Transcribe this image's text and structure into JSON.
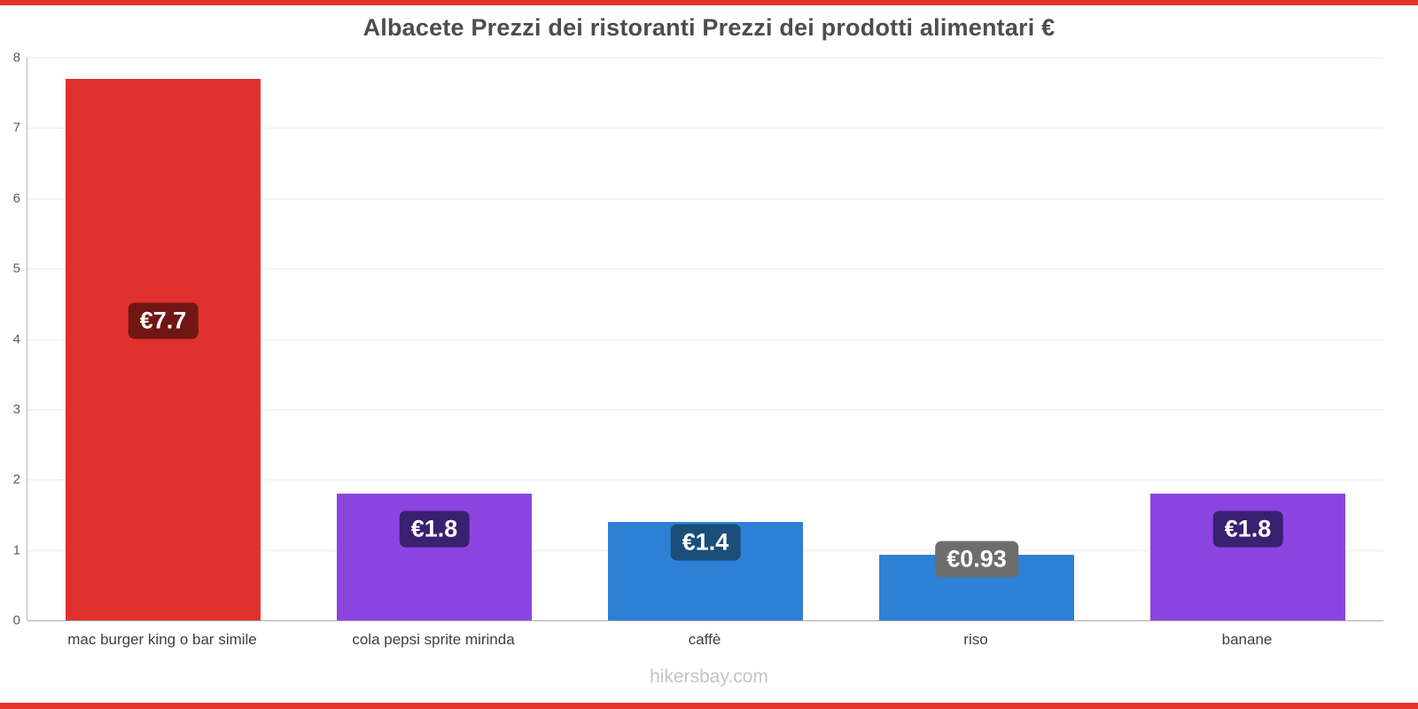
{
  "page": {
    "accent_color": "#e8312a",
    "footer": "hikersbay.com"
  },
  "chart_data": {
    "type": "bar",
    "title": "Albacete Prezzi dei ristoranti Prezzi dei prodotti alimentari €",
    "categories": [
      "mac burger king o bar simile",
      "cola pepsi sprite mirinda",
      "caffè",
      "riso",
      "banane"
    ],
    "values": [
      7.7,
      1.8,
      1.4,
      0.93,
      1.8
    ],
    "value_labels": [
      "€7.7",
      "€1.8",
      "€1.4",
      "€0.93",
      "€1.8"
    ],
    "bar_colors": [
      "#e0312e",
      "#8b44e0",
      "#2e7fd6",
      "#2e7fd6",
      "#8b44e0"
    ],
    "badge_colors": [
      "#701713",
      "#3a2070",
      "#1b4f79",
      "#6d6d6d",
      "#3a2070"
    ],
    "ylim": [
      0,
      8
    ],
    "yticks": [
      0,
      1,
      2,
      3,
      4,
      5,
      6,
      7,
      8
    ],
    "grid": true,
    "legend": "none",
    "xlabel": "",
    "ylabel": ""
  }
}
